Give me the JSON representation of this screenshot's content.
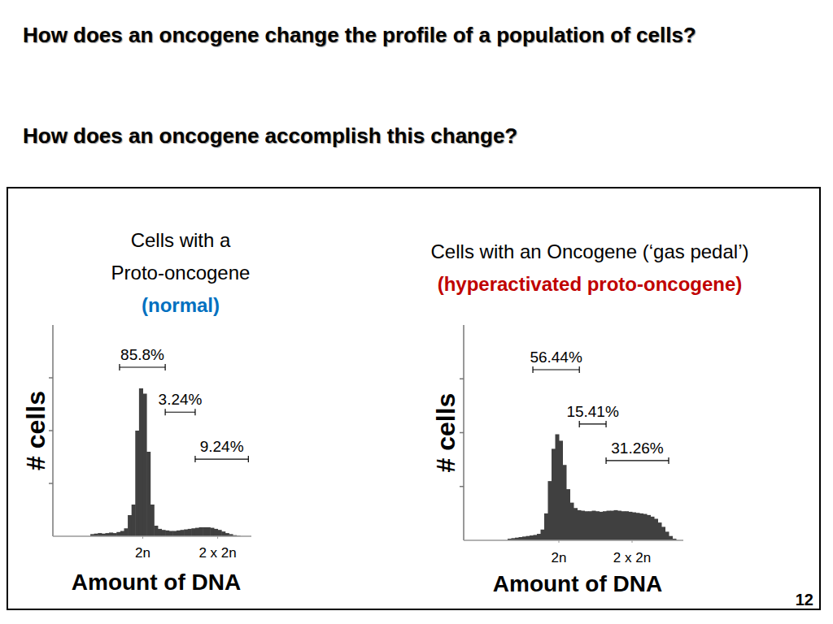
{
  "slide": {
    "title": "How does an oncogene change the profile of a population of cells?",
    "question": "How does an oncogene accomplish this change?",
    "page_number": 12
  },
  "chart_data": [
    {
      "type": "histogram",
      "title": "Cells with a Proto-oncogene",
      "subtitle": "(normal)",
      "x_label": "Amount of DNA",
      "y_label": "# cells",
      "color": "#404040",
      "bins": [
        0.6,
        0.7,
        0.8,
        0.9,
        1.0,
        1.1,
        1.2,
        1.3,
        1.4,
        1.5,
        1.6,
        1.7,
        1.8,
        1.9,
        2.0,
        2.1,
        2.2,
        2.3,
        2.4,
        2.5,
        2.6,
        2.7,
        2.8,
        2.9,
        3.0,
        3.1,
        3.2,
        3.3,
        3.4,
        3.5,
        3.6,
        3.7,
        3.8,
        3.9,
        4.0,
        4.1,
        4.2,
        4.3,
        4.4,
        4.5,
        4.6
      ],
      "values": [
        4,
        5,
        6,
        5,
        6,
        7,
        6,
        8,
        10,
        15,
        40,
        60,
        200,
        280,
        270,
        160,
        60,
        20,
        14,
        12,
        11,
        10,
        10,
        11,
        12,
        13,
        14,
        15,
        16,
        17,
        17,
        17,
        16,
        14,
        12,
        9,
        6,
        4,
        2,
        1
      ],
      "xlim": [
        -0.4,
        4.9
      ],
      "xticks": [
        {
          "value": 2,
          "label": "2n"
        },
        {
          "value": 4,
          "label": "2 x 2n"
        }
      ],
      "ylim": [
        0,
        400
      ],
      "yticks": [
        100,
        200,
        300
      ],
      "tick_labels": "x",
      "gates": {
        "values": [
          85.8,
          3.24,
          9.24
        ],
        "value_labels": [
          "85.8%",
          "3.24%",
          "9.24%"
        ],
        "x_ranges": [
          [
            1.38,
            2.6
          ],
          [
            2.6,
            3.4
          ],
          [
            3.4,
            4.82
          ]
        ],
        "y": [
          320,
          235,
          146
        ]
      }
    },
    {
      "type": "histogram",
      "title": "Cells with an Oncogene (‘gas pedal’)",
      "subtitle": "(hyperactivated proto-oncogene)",
      "x_label": "Amount of DNA",
      "y_label": "# cells",
      "color": "#404040",
      "bins": [
        0.6,
        0.7,
        0.8,
        0.9,
        1.0,
        1.1,
        1.2,
        1.3,
        1.4,
        1.5,
        1.6,
        1.7,
        1.8,
        1.9,
        2.0,
        2.1,
        2.2,
        2.3,
        2.4,
        2.5,
        2.6,
        2.7,
        2.8,
        2.9,
        3.0,
        3.1,
        3.2,
        3.3,
        3.4,
        3.5,
        3.6,
        3.7,
        3.8,
        3.9,
        4.0,
        4.1,
        4.2,
        4.3,
        4.4,
        4.5,
        4.6,
        4.7,
        4.8,
        4.9,
        5.0,
        5.1,
        5.2
      ],
      "values": [
        3,
        4,
        5,
        6,
        7,
        8,
        9,
        10,
        12,
        20,
        50,
        110,
        170,
        197,
        185,
        140,
        95,
        70,
        60,
        56,
        55,
        54,
        54,
        55,
        54,
        53,
        54,
        55,
        55,
        56,
        55,
        54,
        54,
        53,
        52,
        51,
        50,
        49,
        47,
        44,
        40,
        33,
        25,
        16,
        8,
        3
      ],
      "xlim": [
        -0.6,
        5.4
      ],
      "xticks": [
        {
          "value": 2,
          "label": "2n"
        },
        {
          "value": 4,
          "label": "2 x 2n"
        }
      ],
      "ylim": [
        0,
        400
      ],
      "yticks": [
        100,
        200,
        300
      ],
      "tick_labels": "x",
      "gates": {
        "values": [
          56.44,
          15.41,
          31.26
        ],
        "value_labels": [
          "56.44%",
          "15.41%",
          "31.26%"
        ],
        "x_ranges": [
          [
            1.29,
            2.56
          ],
          [
            2.56,
            3.29
          ],
          [
            3.29,
            5.0
          ]
        ],
        "y": [
          317,
          216,
          148
        ]
      }
    }
  ]
}
